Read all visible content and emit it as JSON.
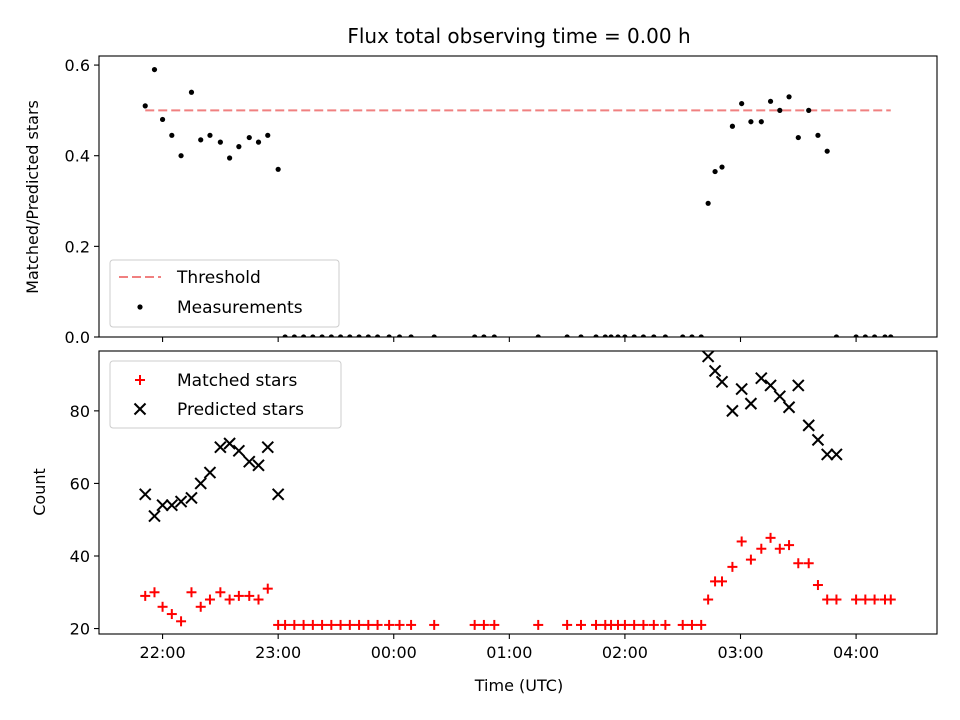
{
  "chart_data": {
    "title": "Flux total observing time = 0.00 h",
    "x_label": "Time (UTC)",
    "x_unit": "hours since 21:00 UTC (22:00 = 1)",
    "x_ticks": [
      {
        "value": 1,
        "label": "22:00"
      },
      {
        "value": 2,
        "label": "23:00"
      },
      {
        "value": 3,
        "label": "00:00"
      },
      {
        "value": 4,
        "label": "01:00"
      },
      {
        "value": 5,
        "label": "02:00"
      },
      {
        "value": 6,
        "label": "03:00"
      },
      {
        "value": 7,
        "label": "04:00"
      }
    ],
    "xlim": [
      0.45,
      7.7
    ],
    "colors": {
      "threshold": "#f08080",
      "measurements": "#000000",
      "matched": "#ff0000",
      "predicted": "#000000"
    },
    "panels": [
      {
        "type": "scatter+line",
        "ylabel": "Matched/Predicted stars",
        "ylim": [
          0,
          0.62
        ],
        "y_ticks": [
          0.0,
          0.2,
          0.4,
          0.6
        ],
        "y_tick_labels": [
          "0.0",
          "0.2",
          "0.4",
          "0.6"
        ],
        "legend": {
          "placement": "lower-left",
          "entries": [
            "Threshold",
            "Measurements"
          ]
        },
        "threshold": {
          "name": "Threshold",
          "y": 0.5,
          "x_range": [
            0.85,
            7.3
          ]
        },
        "measurements": {
          "name": "Measurements",
          "x": [
            0.85,
            0.93,
            1.0,
            1.08,
            1.16,
            1.25,
            1.33,
            1.41,
            1.5,
            1.58,
            1.66,
            1.75,
            1.83,
            1.91,
            2.0,
            2.06,
            2.14,
            2.22,
            2.3,
            2.38,
            2.46,
            2.54,
            2.62,
            2.7,
            2.78,
            2.86,
            2.96,
            3.05,
            3.15,
            3.35,
            3.7,
            3.78,
            3.87,
            4.25,
            4.5,
            4.62,
            4.75,
            4.83,
            4.88,
            4.94,
            5.0,
            5.08,
            5.16,
            5.25,
            5.35,
            5.5,
            5.58,
            5.66,
            5.72,
            5.78,
            5.84,
            5.93,
            6.01,
            6.09,
            6.18,
            6.26,
            6.34,
            6.42,
            6.5,
            6.59,
            6.67,
            6.75,
            6.83,
            7.0,
            7.08,
            7.16,
            7.25,
            7.3
          ],
          "y": [
            0.51,
            0.59,
            0.48,
            0.445,
            0.4,
            0.54,
            0.435,
            0.445,
            0.43,
            0.395,
            0.42,
            0.44,
            0.43,
            0.445,
            0.37,
            0.0,
            0.0,
            0.0,
            0.0,
            0.0,
            0.0,
            0.0,
            0.0,
            0.0,
            0.0,
            0.0,
            0.0,
            0.0,
            0.0,
            0.0,
            0.0,
            0.0,
            0.0,
            0.0,
            0.0,
            0.0,
            0.0,
            0.0,
            0.0,
            0.0,
            0.0,
            0.0,
            0.0,
            0.0,
            0.0,
            0.0,
            0.0,
            0.0,
            0.295,
            0.365,
            0.375,
            0.465,
            0.515,
            0.475,
            0.475,
            0.52,
            0.5,
            0.53,
            0.44,
            0.5,
            0.445,
            0.41,
            0.0,
            0.0,
            0.0,
            0.0,
            0.0,
            0.0
          ]
        }
      },
      {
        "type": "scatter",
        "ylabel": "Count",
        "ylim": [
          18.5,
          96.5
        ],
        "y_ticks": [
          20,
          40,
          60,
          80
        ],
        "y_tick_labels": [
          "20",
          "40",
          "60",
          "80"
        ],
        "legend": {
          "placement": "upper-left",
          "entries": [
            "Matched stars",
            "Predicted stars"
          ]
        },
        "series": [
          {
            "name": "Matched stars",
            "marker": "plus",
            "x": [
              0.85,
              0.93,
              1.0,
              1.08,
              1.16,
              1.25,
              1.33,
              1.41,
              1.5,
              1.58,
              1.66,
              1.75,
              1.83,
              1.91,
              2.0,
              2.06,
              2.14,
              2.22,
              2.3,
              2.38,
              2.46,
              2.54,
              2.62,
              2.7,
              2.78,
              2.86,
              2.96,
              3.05,
              3.15,
              3.35,
              3.7,
              3.78,
              3.87,
              4.25,
              4.5,
              4.62,
              4.75,
              4.83,
              4.88,
              4.94,
              5.0,
              5.08,
              5.16,
              5.25,
              5.35,
              5.5,
              5.58,
              5.66,
              5.72,
              5.78,
              5.84,
              5.93,
              6.01,
              6.09,
              6.18,
              6.26,
              6.34,
              6.42,
              6.5,
              6.59,
              6.67,
              6.75,
              6.83,
              7.0,
              7.08,
              7.16,
              7.25,
              7.3
            ],
            "y": [
              29,
              30,
              26,
              24,
              22,
              30,
              26,
              28,
              30,
              28,
              29,
              29,
              28,
              31,
              21,
              21,
              21,
              21,
              21,
              21,
              21,
              21,
              21,
              21,
              21,
              21,
              21,
              21,
              21,
              21,
              21,
              21,
              21,
              21,
              21,
              21,
              21,
              21,
              21,
              21,
              21,
              21,
              21,
              21,
              21,
              21,
              21,
              21,
              28,
              33,
              33,
              37,
              44,
              39,
              42,
              45,
              42,
              43,
              38,
              38,
              32,
              28,
              28,
              28,
              28,
              28,
              28,
              28
            ]
          },
          {
            "name": "Predicted stars",
            "marker": "x",
            "x": [
              0.85,
              0.93,
              1.0,
              1.08,
              1.16,
              1.25,
              1.33,
              1.41,
              1.5,
              1.58,
              1.66,
              1.75,
              1.83,
              1.91,
              2.0,
              5.72,
              5.78,
              5.84,
              5.93,
              6.01,
              6.09,
              6.18,
              6.26,
              6.34,
              6.42,
              6.5,
              6.59,
              6.67,
              6.75,
              6.83
            ],
            "y": [
              57,
              51,
              54,
              54,
              55,
              56,
              60,
              63,
              70,
              71,
              69,
              66,
              65,
              70,
              57,
              95,
              91,
              88,
              80,
              86,
              82,
              89,
              87,
              84,
              81,
              87,
              76,
              72,
              68,
              68
            ]
          }
        ]
      }
    ]
  }
}
